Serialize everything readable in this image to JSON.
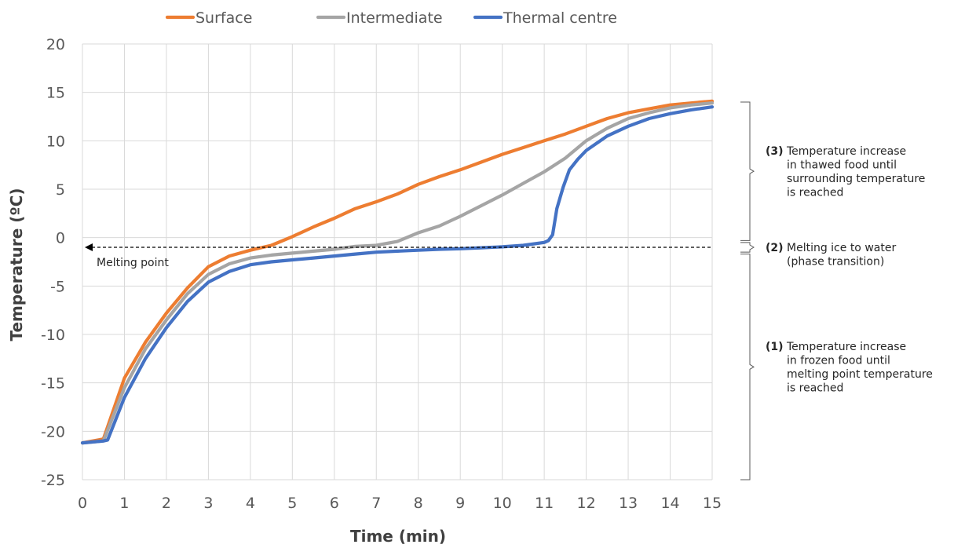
{
  "chart_data": {
    "type": "line",
    "xlabel": "Time (min)",
    "ylabel": "Temperature (ºC)",
    "xlim": [
      0,
      15
    ],
    "ylim": [
      -25,
      20
    ],
    "x_ticks": [
      0,
      1,
      2,
      3,
      4,
      5,
      6,
      7,
      8,
      9,
      10,
      11,
      12,
      13,
      14,
      15
    ],
    "y_ticks": [
      20,
      15,
      10,
      5,
      0,
      -5,
      -10,
      -15,
      -20,
      -25
    ],
    "grid": true,
    "legend_position": "top",
    "series": [
      {
        "name": "Surface",
        "color": "#ED7D31",
        "points": [
          [
            0,
            -21.2
          ],
          [
            0.5,
            -20.8
          ],
          [
            1,
            -14.5
          ],
          [
            1.5,
            -10.8
          ],
          [
            2,
            -7.8
          ],
          [
            2.5,
            -5.2
          ],
          [
            3,
            -3.0
          ],
          [
            3.5,
            -1.9
          ],
          [
            4,
            -1.3
          ],
          [
            4.5,
            -0.8
          ],
          [
            5,
            0.1
          ],
          [
            5.5,
            1.1
          ],
          [
            6,
            2.0
          ],
          [
            6.5,
            3.0
          ],
          [
            7,
            3.7
          ],
          [
            7.5,
            4.5
          ],
          [
            8,
            5.5
          ],
          [
            8.5,
            6.3
          ],
          [
            9,
            7.0
          ],
          [
            9.5,
            7.8
          ],
          [
            10,
            8.6
          ],
          [
            10.5,
            9.3
          ],
          [
            11,
            10.0
          ],
          [
            11.5,
            10.7
          ],
          [
            12,
            11.5
          ],
          [
            12.5,
            12.3
          ],
          [
            13,
            12.9
          ],
          [
            13.5,
            13.3
          ],
          [
            14,
            13.7
          ],
          [
            14.5,
            13.9
          ],
          [
            15,
            14.1
          ]
        ]
      },
      {
        "name": "Intermediate",
        "color": "#A5A5A5",
        "points": [
          [
            0,
            -21.2
          ],
          [
            0.5,
            -21.0
          ],
          [
            1,
            -15.5
          ],
          [
            1.5,
            -11.5
          ],
          [
            2,
            -8.5
          ],
          [
            2.5,
            -5.8
          ],
          [
            3,
            -3.8
          ],
          [
            3.5,
            -2.7
          ],
          [
            4,
            -2.1
          ],
          [
            4.5,
            -1.8
          ],
          [
            5,
            -1.6
          ],
          [
            5.5,
            -1.4
          ],
          [
            6,
            -1.2
          ],
          [
            6.5,
            -0.9
          ],
          [
            7,
            -0.8
          ],
          [
            7.5,
            -0.4
          ],
          [
            8,
            0.5
          ],
          [
            8.5,
            1.2
          ],
          [
            9,
            2.2
          ],
          [
            9.5,
            3.3
          ],
          [
            10,
            4.4
          ],
          [
            10.5,
            5.6
          ],
          [
            11,
            6.8
          ],
          [
            11.5,
            8.2
          ],
          [
            12,
            10.0
          ],
          [
            12.5,
            11.3
          ],
          [
            13,
            12.3
          ],
          [
            13.5,
            12.9
          ],
          [
            14,
            13.4
          ],
          [
            14.5,
            13.7
          ],
          [
            15,
            13.9
          ]
        ]
      },
      {
        "name": "Thermal centre",
        "color": "#4472C4",
        "points": [
          [
            0,
            -21.2
          ],
          [
            0.5,
            -21.0
          ],
          [
            0.6,
            -20.9
          ],
          [
            1,
            -16.5
          ],
          [
            1.5,
            -12.5
          ],
          [
            2,
            -9.3
          ],
          [
            2.5,
            -6.6
          ],
          [
            3,
            -4.6
          ],
          [
            3.5,
            -3.5
          ],
          [
            4,
            -2.8
          ],
          [
            4.5,
            -2.5
          ],
          [
            5,
            -2.3
          ],
          [
            5.5,
            -2.1
          ],
          [
            6,
            -1.9
          ],
          [
            6.5,
            -1.7
          ],
          [
            7,
            -1.5
          ],
          [
            7.5,
            -1.4
          ],
          [
            8,
            -1.3
          ],
          [
            8.5,
            -1.2
          ],
          [
            9,
            -1.15
          ],
          [
            9.5,
            -1.05
          ],
          [
            10,
            -0.95
          ],
          [
            10.5,
            -0.8
          ],
          [
            11,
            -0.5
          ],
          [
            11.1,
            -0.3
          ],
          [
            11.2,
            0.3
          ],
          [
            11.3,
            3.0
          ],
          [
            11.45,
            5.2
          ],
          [
            11.6,
            7.0
          ],
          [
            11.8,
            8.1
          ],
          [
            12,
            9.0
          ],
          [
            12.5,
            10.5
          ],
          [
            13,
            11.5
          ],
          [
            13.5,
            12.3
          ],
          [
            14,
            12.8
          ],
          [
            14.5,
            13.2
          ],
          [
            15,
            13.5
          ]
        ]
      }
    ],
    "melting_line": {
      "y": -1.0,
      "x_start": 0,
      "x_end": 15,
      "label": "Melting point"
    },
    "annotations": [
      {
        "number": "(3)",
        "lines": [
          "Temperature increase",
          "in thawed food until",
          "surrounding temperature",
          "is reached"
        ],
        "y_from": 14,
        "y_to": -0.3
      },
      {
        "number": "(2)",
        "lines": [
          "Melting ice to water",
          "(phase transition)"
        ],
        "y_from": -0.5,
        "y_to": -1.5
      },
      {
        "number": "(1)",
        "lines": [
          "Temperature increase",
          "in frozen food until",
          "melting point temperature",
          "is reached"
        ],
        "y_from": -1.7,
        "y_to": -25
      }
    ]
  }
}
